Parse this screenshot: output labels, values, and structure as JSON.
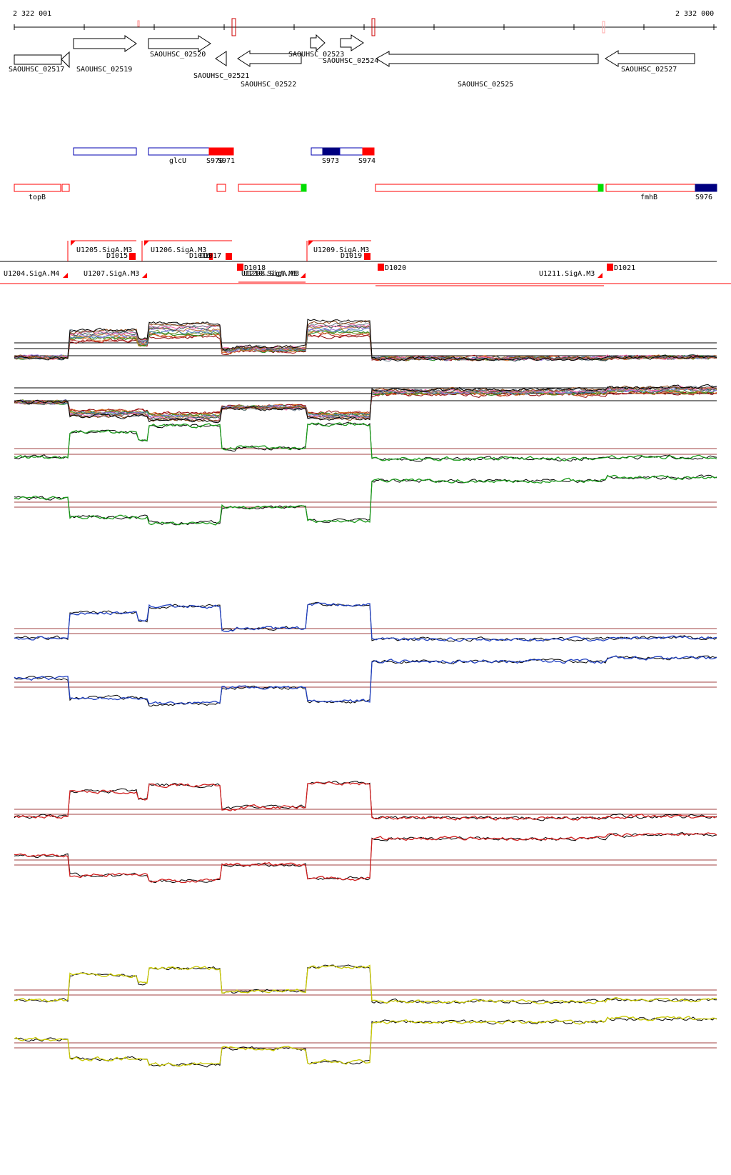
{
  "coordinates": {
    "start": "2 322 001",
    "end": "2 332 000"
  },
  "genes": [
    {
      "id": "SAOUHSC_02517",
      "strand": "-"
    },
    {
      "id": "SAOUHSC_02519",
      "strand": "+"
    },
    {
      "id": "SAOUHSC_02520",
      "strand": "+"
    },
    {
      "id": "SAOUHSC_02521",
      "strand": "-"
    },
    {
      "id": "SAOUHSC_02522",
      "strand": "-"
    },
    {
      "id": "SAOUHSC_02523",
      "strand": "+"
    },
    {
      "id": "SAOUHSC_02524",
      "strand": "+"
    },
    {
      "id": "SAOUHSC_02525",
      "strand": "-"
    },
    {
      "id": "SAOUHSC_02527",
      "strand": "-"
    }
  ],
  "forward_features": [
    "glcU",
    "S970",
    "S971",
    "S973",
    "S974"
  ],
  "reverse_features": [
    "topB",
    "fmhB",
    "S976"
  ],
  "promoters_upper": [
    "U1205.SigA.M3",
    "U1206.SigA.M3",
    "U1209.SigA.M3"
  ],
  "promoters_lower": [
    "U1204.SigA.M4",
    "U1207.SigA.M3",
    "U1208.SigA.M3",
    "U1210.SigA.M3",
    "U1211.SigA.M3"
  ],
  "terminators": [
    "D1015",
    "D1016",
    "D1017",
    "D1018",
    "D1019",
    "D1020",
    "D1021"
  ],
  "track_colors": {
    "multi": "#8b0000",
    "green": "#1a9a1a",
    "blue": "#1f3fbf",
    "red": "#d02020",
    "yellow": "#c8c800",
    "threshold": "#a04040",
    "feature_red": "#ff0000",
    "feature_blue": "#0000b0",
    "feature_navy": "#000080",
    "feature_green": "#00dd00"
  }
}
